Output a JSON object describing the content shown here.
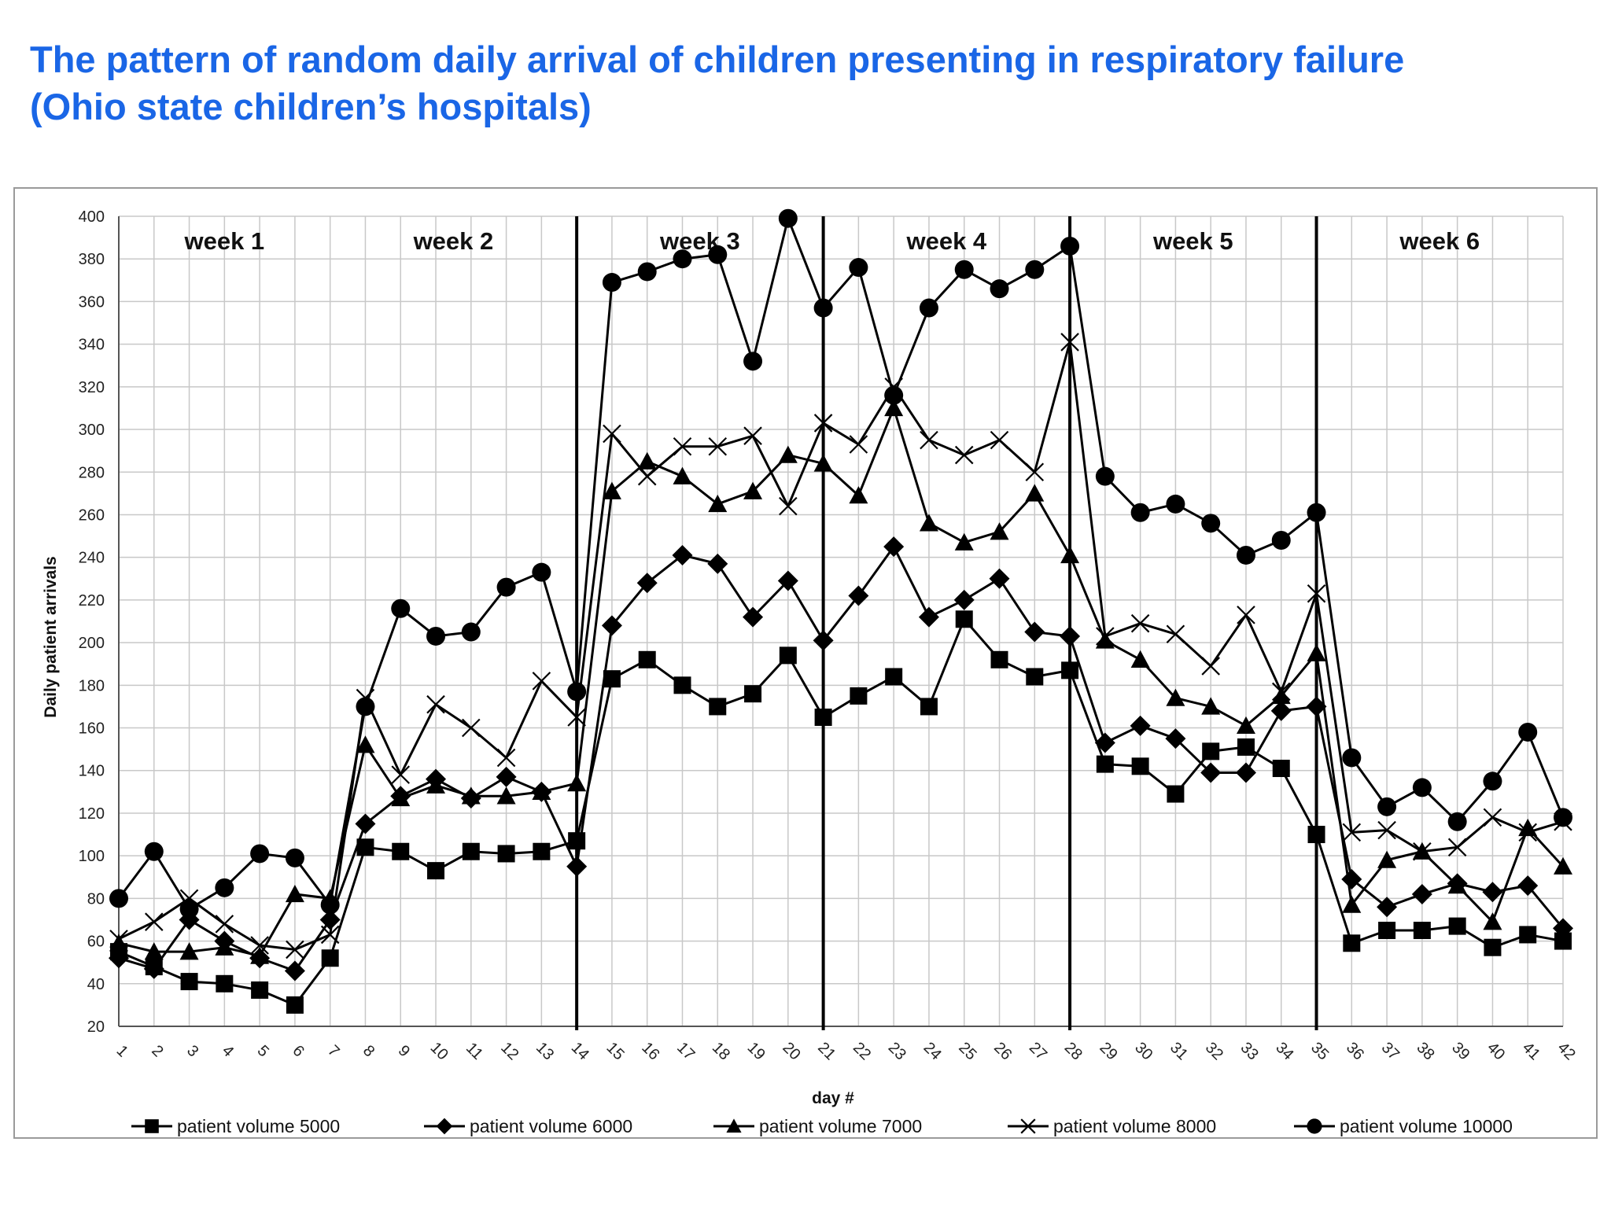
{
  "page": {
    "title_line1": "The pattern of random daily arrival of children presenting in respiratory failure",
    "title_line2": "(Ohio state children’s hospitals)"
  },
  "chart_data": {
    "type": "line",
    "xlabel": "day #",
    "ylabel": "Daily patient arrivals",
    "xlim": [
      1,
      42
    ],
    "ylim": [
      20,
      400
    ],
    "y_ticks": [
      20,
      40,
      60,
      80,
      100,
      120,
      140,
      160,
      180,
      200,
      220,
      240,
      260,
      280,
      300,
      320,
      340,
      360,
      380,
      400
    ],
    "x": [
      1,
      2,
      3,
      4,
      5,
      6,
      7,
      8,
      9,
      10,
      11,
      12,
      13,
      14,
      15,
      16,
      17,
      18,
      19,
      20,
      21,
      22,
      23,
      24,
      25,
      26,
      27,
      28,
      29,
      30,
      31,
      32,
      33,
      34,
      35,
      36,
      37,
      38,
      39,
      40,
      41,
      42
    ],
    "grid": true,
    "legend_position": "bottom",
    "week_dividers": [
      14,
      21,
      28,
      35
    ],
    "week_labels": [
      {
        "text": "week 1",
        "day": 4
      },
      {
        "text": "week 2",
        "day": 10.5
      },
      {
        "text": "week 3",
        "day": 17.5
      },
      {
        "text": "week 4",
        "day": 24.5
      },
      {
        "text": "week 5",
        "day": 31.5
      },
      {
        "text": "week 6",
        "day": 38.5
      }
    ],
    "series": [
      {
        "name": "patient volume 5000",
        "marker": "square",
        "values": [
          55,
          48,
          41,
          40,
          37,
          30,
          52,
          104,
          102,
          93,
          102,
          101,
          102,
          107,
          183,
          192,
          180,
          170,
          176,
          194,
          165,
          175,
          184,
          170,
          211,
          192,
          184,
          187,
          143,
          142,
          129,
          149,
          151,
          141,
          110,
          59,
          65,
          65,
          67,
          57,
          63,
          60
        ]
      },
      {
        "name": "patient volume 6000",
        "marker": "diamond",
        "values": [
          52,
          47,
          70,
          60,
          52,
          46,
          70,
          115,
          128,
          136,
          127,
          137,
          130,
          95,
          208,
          228,
          241,
          237,
          212,
          229,
          201,
          222,
          245,
          212,
          220,
          230,
          205,
          203,
          153,
          161,
          155,
          139,
          139,
          168,
          170,
          89,
          76,
          82,
          87,
          83,
          86,
          66
        ]
      },
      {
        "name": "patient volume 7000",
        "marker": "triangle",
        "values": [
          59,
          55,
          55,
          57,
          53,
          82,
          80,
          152,
          127,
          133,
          128,
          128,
          130,
          134,
          271,
          285,
          278,
          265,
          271,
          288,
          284,
          269,
          310,
          256,
          247,
          252,
          270,
          241,
          201,
          192,
          174,
          170,
          161,
          175,
          195,
          77,
          98,
          102,
          86,
          69,
          113,
          95
        ]
      },
      {
        "name": "patient volume 8000",
        "marker": "x",
        "values": [
          61,
          69,
          80,
          68,
          58,
          56,
          63,
          174,
          138,
          171,
          160,
          146,
          182,
          165,
          298,
          278,
          292,
          292,
          297,
          264,
          303,
          293,
          320,
          295,
          288,
          295,
          280,
          341,
          203,
          209,
          204,
          189,
          213,
          177,
          223,
          111,
          112,
          102,
          104,
          118,
          111,
          116
        ]
      },
      {
        "name": "patient volume 10000",
        "marker": "circle",
        "values": [
          80,
          102,
          75,
          85,
          101,
          99,
          77,
          170,
          216,
          203,
          205,
          226,
          233,
          177,
          369,
          374,
          380,
          382,
          332,
          399,
          357,
          376,
          316,
          357,
          375,
          366,
          375,
          386,
          278,
          261,
          265,
          256,
          241,
          248,
          261,
          146,
          123,
          132,
          116,
          135,
          158,
          118
        ]
      }
    ]
  }
}
